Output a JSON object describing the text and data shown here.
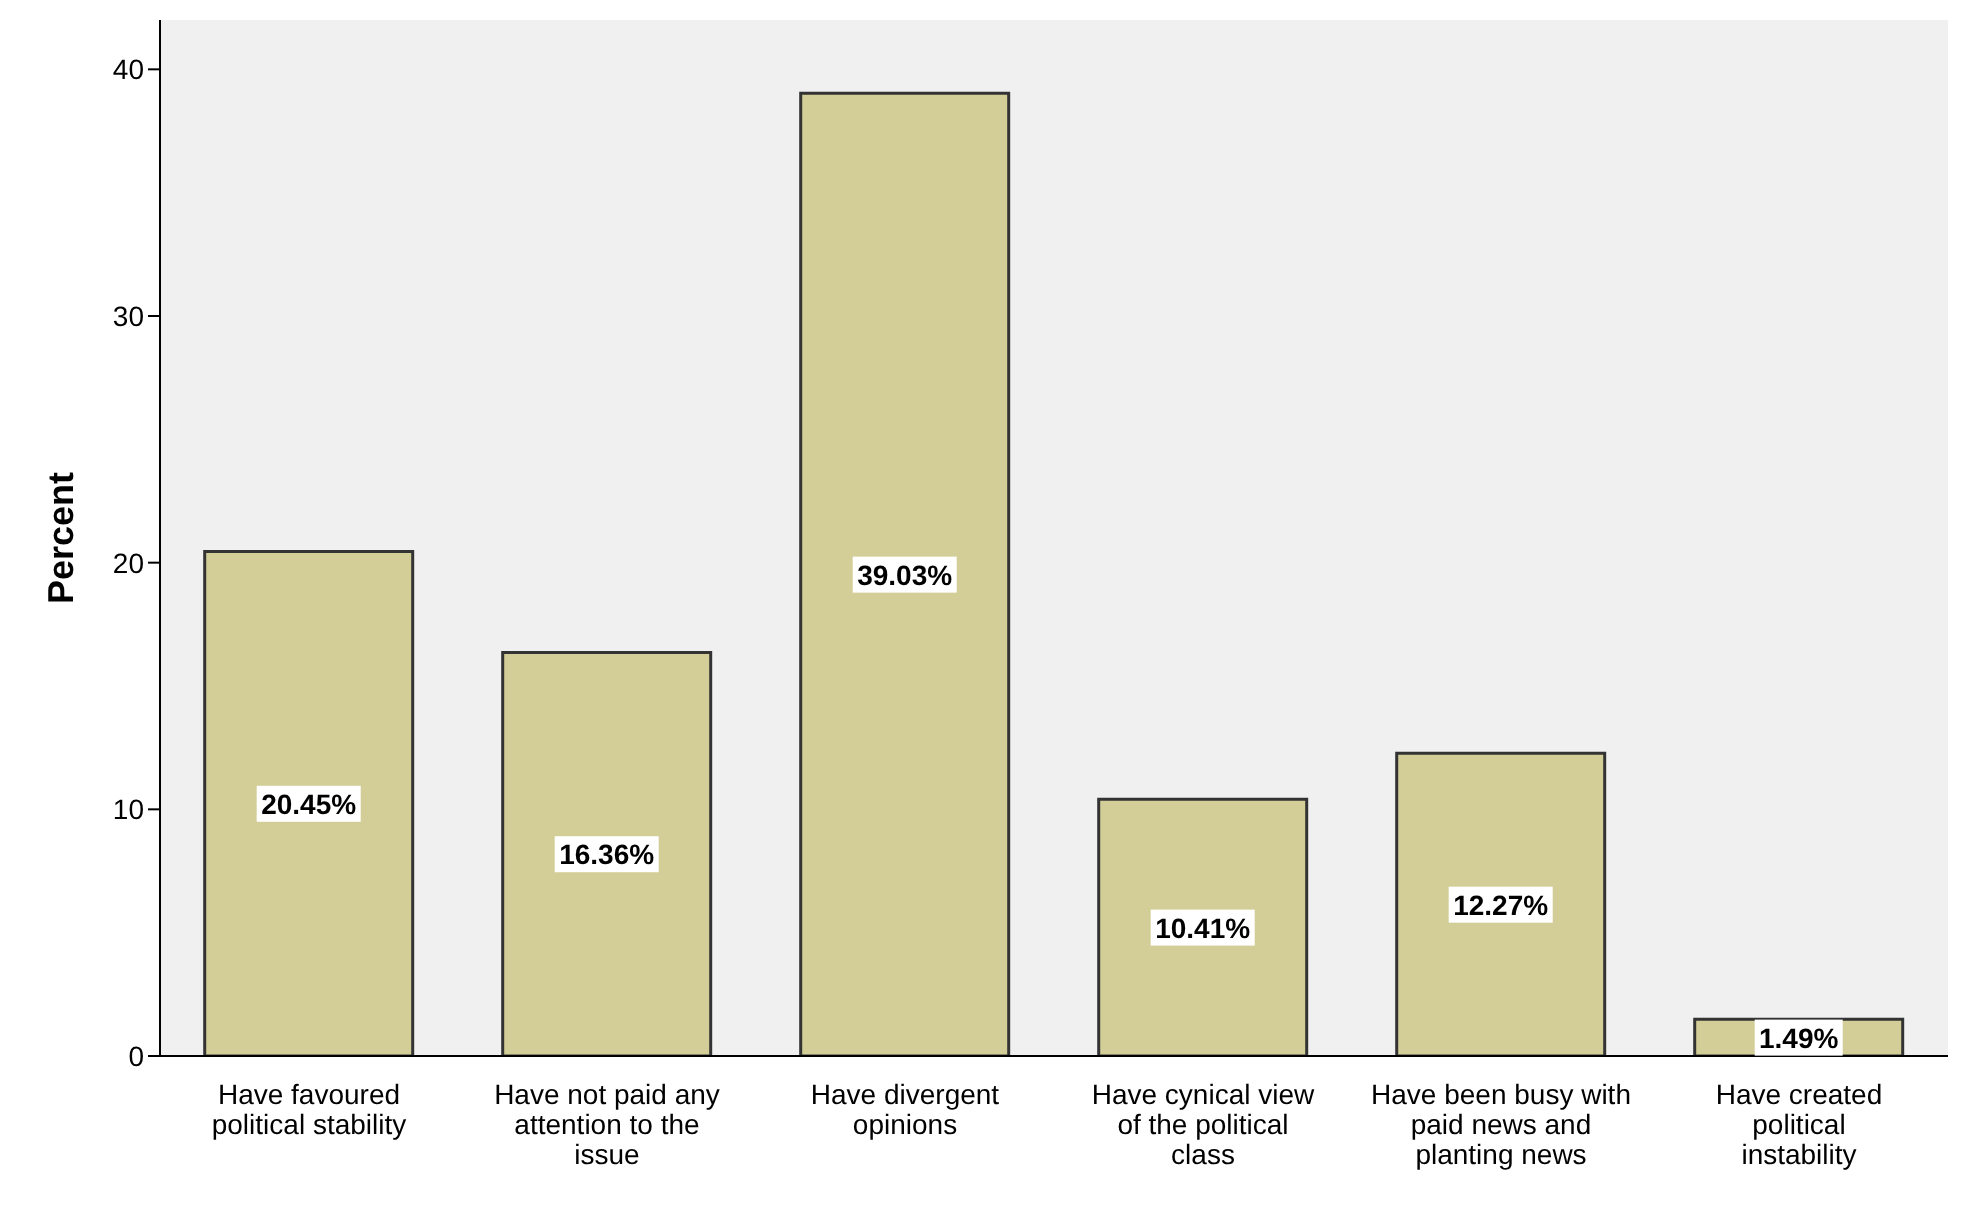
{
  "chart_data": {
    "type": "bar",
    "ylabel": "Percent",
    "categories": [
      "Have favoured political stability",
      "Have not paid any attention to the issue",
      "Have divergent opinions",
      "Have cynical view of the political class",
      "Have been busy with paid news and planting news",
      "Have created political instability"
    ],
    "values": [
      20.45,
      16.36,
      39.03,
      10.41,
      12.27,
      1.49
    ],
    "value_labels": [
      "20.45%",
      "16.36%",
      "39.03%",
      "10.41%",
      "12.27%",
      "1.49%"
    ],
    "color": "#d3ce98",
    "ylim": [
      0,
      42
    ],
    "yticks": [
      0,
      10,
      20,
      30,
      40
    ],
    "grid": false
  }
}
